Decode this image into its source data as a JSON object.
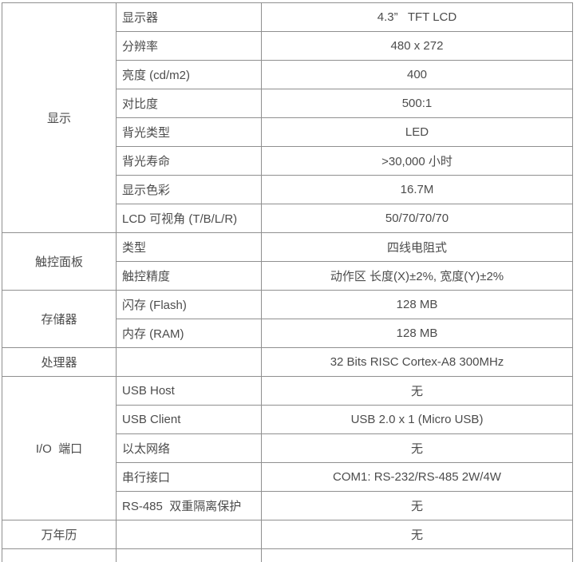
{
  "table": {
    "colors": {
      "border": "#8f8f8f",
      "text": "#4c4c4c",
      "background": "#ffffff"
    },
    "sections": [
      {
        "category": "显示",
        "rows": [
          {
            "attr": "显示器",
            "value": "4.3”   TFT LCD"
          },
          {
            "attr": "分辨率",
            "value": "480 x 272"
          },
          {
            "attr": "亮度 (cd/m2)",
            "value": "400"
          },
          {
            "attr": "对比度",
            "value": "500:1"
          },
          {
            "attr": "背光类型",
            "value": "LED"
          },
          {
            "attr": "背光寿命",
            "value": ">30,000 小时"
          },
          {
            "attr": "显示色彩",
            "value": "16.7M"
          },
          {
            "attr": "LCD 可视角 (T/B/L/R)",
            "value": "50/70/70/70"
          }
        ]
      },
      {
        "category": "触控面板",
        "rows": [
          {
            "attr": "类型",
            "value": "四线电阻式"
          },
          {
            "attr": "触控精度",
            "value": "动作区 长度(X)±2%, 宽度(Y)±2%"
          }
        ]
      },
      {
        "category": "存储器",
        "rows": [
          {
            "attr": "闪存 (Flash)",
            "value": "128 MB"
          },
          {
            "attr": "内存 (RAM)",
            "value": "128 MB"
          }
        ]
      },
      {
        "category": "处理器",
        "rows": [
          {
            "attr": "",
            "value": "32 Bits RISC Cortex-A8 300MHz"
          }
        ]
      },
      {
        "category": "I/O  端口",
        "rows": [
          {
            "attr": "USB Host",
            "value": "无"
          },
          {
            "attr": "USB Client",
            "value": "USB 2.0 x 1 (Micro USB)"
          },
          {
            "attr": "以太网络",
            "value": "无"
          },
          {
            "attr": "串行接口",
            "value": "COM1: RS-232/RS-485 2W/4W"
          },
          {
            "attr": "RS-485  双重隔离保护",
            "value": "无"
          }
        ]
      },
      {
        "category": "万年历",
        "rows": [
          {
            "attr": "",
            "value": "无"
          }
        ]
      }
    ]
  }
}
